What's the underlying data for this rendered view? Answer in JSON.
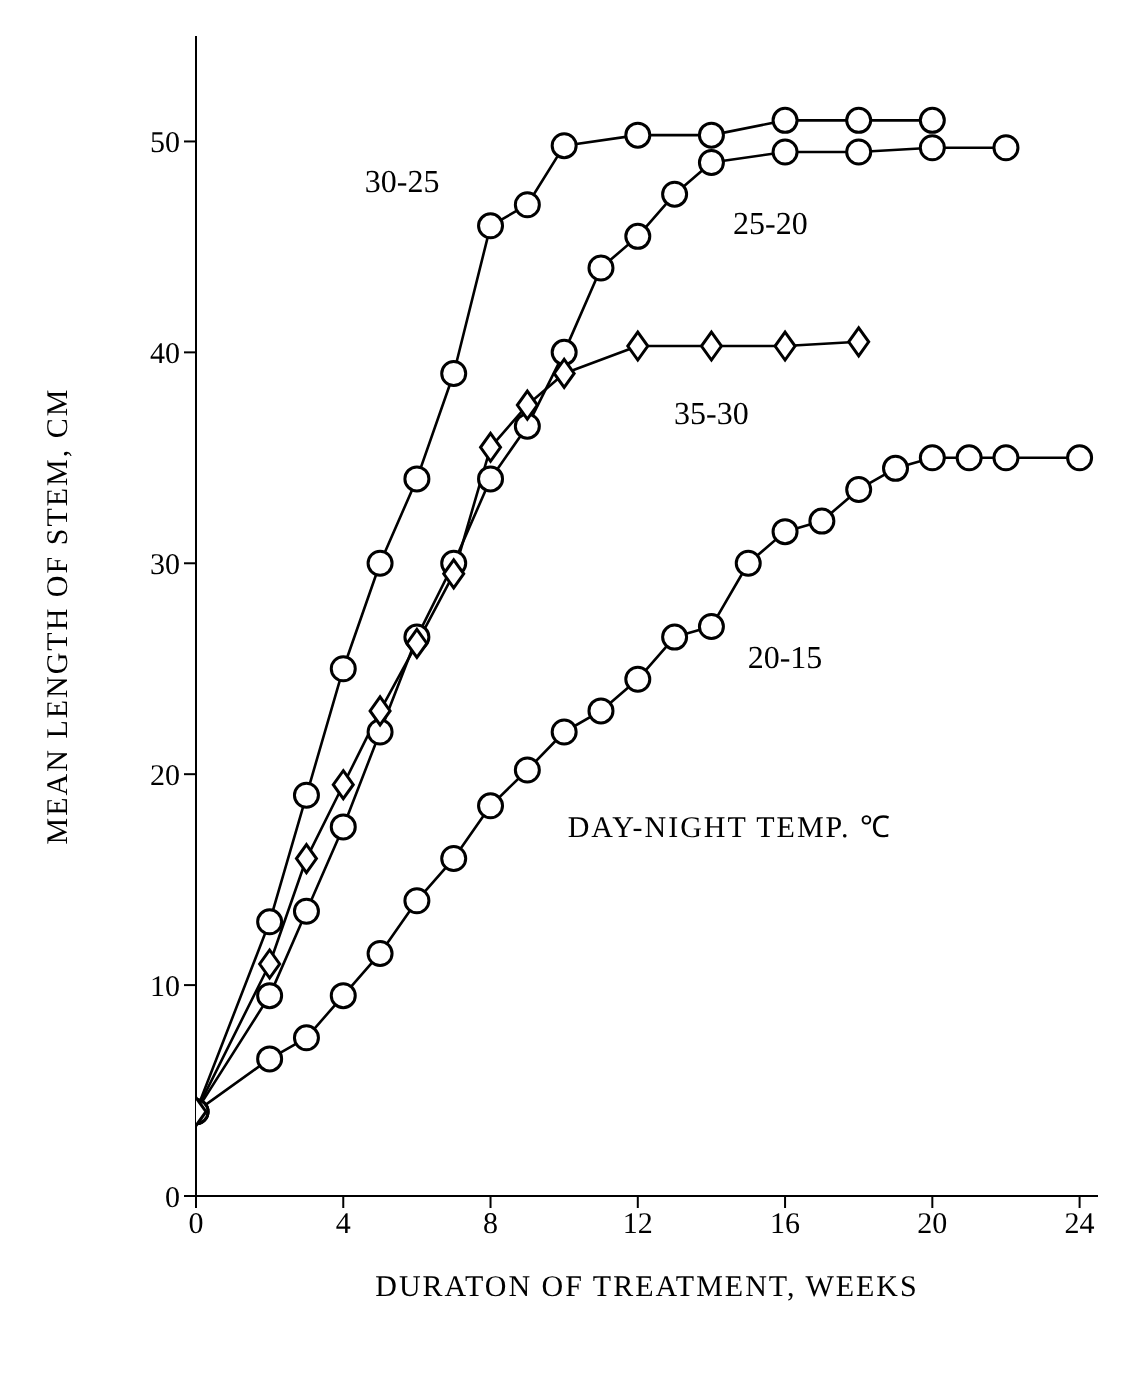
{
  "chart_data": {
    "type": "line",
    "xlabel": "DURATON OF TREATMENT, WEEKS",
    "ylabel": "MEAN LENGTH OF STEM, CM",
    "legend_title": "DAY-NIGHT TEMP. ℃",
    "xlim": [
      0,
      24.5
    ],
    "xticks": [
      0,
      4,
      8,
      12,
      16,
      20,
      24
    ],
    "ylim": [
      0,
      55
    ],
    "yticks": [
      0,
      10,
      20,
      30,
      40,
      50
    ],
    "grid": false,
    "legend": false,
    "line_style": "solid",
    "series": [
      {
        "name": "30-25",
        "color": "#000000",
        "marker": "circle",
        "x": [
          0,
          2,
          3,
          4,
          5,
          6,
          7,
          8,
          9,
          10,
          12,
          14,
          16,
          18,
          20
        ],
        "values": [
          4,
          13,
          19,
          25,
          30,
          34,
          39,
          46,
          47,
          49.8,
          50.3,
          50.3,
          51,
          51,
          51
        ]
      },
      {
        "name": "25-20",
        "color": "#000000",
        "marker": "circle",
        "x": [
          0,
          2,
          3,
          4,
          5,
          6,
          7,
          8,
          9,
          10,
          11,
          12,
          13,
          14,
          16,
          18,
          20,
          22
        ],
        "values": [
          4,
          9.5,
          13.5,
          17.5,
          22,
          26.5,
          30,
          34,
          36.5,
          40,
          44,
          45.5,
          47.5,
          49,
          49.5,
          49.5,
          49.7,
          49.7
        ]
      },
      {
        "name": "20-15",
        "color": "#000000",
        "marker": "circle",
        "x": [
          0,
          2,
          3,
          4,
          5,
          6,
          7,
          8,
          9,
          10,
          11,
          12,
          13,
          14,
          15,
          16,
          17,
          18,
          19,
          20,
          21,
          22,
          24
        ],
        "values": [
          4,
          6.5,
          7.5,
          9.5,
          11.5,
          14,
          16,
          18.5,
          20.2,
          22,
          23,
          24.5,
          26.5,
          27,
          30,
          31.5,
          32,
          33.5,
          34.5,
          35,
          35,
          35,
          35
        ]
      },
      {
        "name": "35-30",
        "color": "#000000",
        "marker": "diamond",
        "x": [
          0,
          2,
          3,
          4,
          5,
          6,
          7,
          8,
          9,
          10,
          12,
          14,
          16,
          18
        ],
        "values": [
          4,
          11,
          16,
          19.5,
          23,
          26.2,
          29.5,
          35.5,
          37.5,
          39,
          40.3,
          40.3,
          40.3,
          40.5
        ]
      }
    ]
  }
}
